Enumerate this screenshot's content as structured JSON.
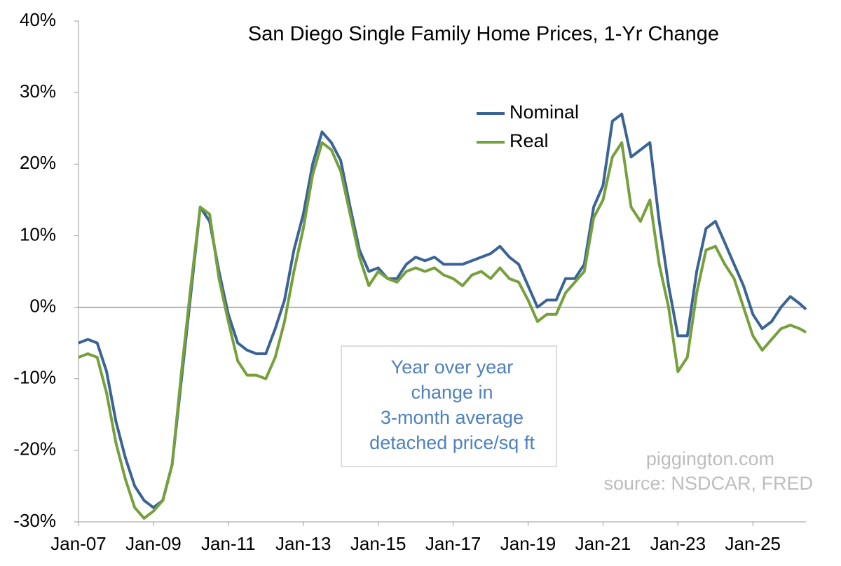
{
  "chart_data": {
    "type": "line",
    "title": "San Diego Single Family Home Prices, 1-Yr Change",
    "x": [
      "Jan-07",
      "Apr-07",
      "Jul-07",
      "Oct-07",
      "Jan-08",
      "Apr-08",
      "Jul-08",
      "Oct-08",
      "Jan-09",
      "Apr-09",
      "Jul-09",
      "Oct-09",
      "Jan-10",
      "Apr-10",
      "Jul-10",
      "Oct-10",
      "Jan-11",
      "Apr-11",
      "Jul-11",
      "Oct-11",
      "Jan-12",
      "Apr-12",
      "Jul-12",
      "Oct-12",
      "Jan-13",
      "Apr-13",
      "Jul-13",
      "Oct-13",
      "Jan-14",
      "Apr-14",
      "Jul-14",
      "Oct-14",
      "Jan-15",
      "Apr-15",
      "Jul-15",
      "Oct-15",
      "Jan-16",
      "Apr-16",
      "Jul-16",
      "Oct-16",
      "Jan-17",
      "Apr-17",
      "Jul-17",
      "Oct-17",
      "Jan-18",
      "Apr-18",
      "Jul-18",
      "Oct-18",
      "Jan-19",
      "Apr-19",
      "Jul-19",
      "Oct-19",
      "Jan-20",
      "Apr-20",
      "Jul-20",
      "Oct-20",
      "Jan-21",
      "Apr-21",
      "Jul-21",
      "Oct-21",
      "Jan-22",
      "Apr-22",
      "Jul-22",
      "Oct-22",
      "Jan-23",
      "Apr-23",
      "Jul-23",
      "Oct-23",
      "Jan-24",
      "Apr-24",
      "Jul-24",
      "Oct-24",
      "Jan-25",
      "Apr-25",
      "Jul-25",
      "Oct-25",
      "Jan-26",
      "Apr-26",
      "Jun-26"
    ],
    "series": [
      {
        "name": "Nominal",
        "color": "#3b6496",
        "values": [
          -5,
          -4.5,
          -5,
          -9,
          -16,
          -21,
          -25,
          -27,
          -28,
          -27,
          -22,
          -10,
          2,
          14,
          12,
          5,
          -1,
          -5,
          -6,
          -6.5,
          -6.5,
          -3,
          1,
          8,
          13,
          20,
          24.5,
          23,
          20.5,
          14,
          8,
          5,
          5.5,
          4,
          4,
          6,
          7,
          6.5,
          7,
          6,
          6,
          6,
          6.5,
          7,
          7.5,
          8.5,
          7,
          6,
          3,
          0,
          1,
          1,
          4,
          4,
          6,
          14,
          17,
          26,
          27,
          21,
          22,
          23,
          12,
          3,
          -4,
          -4,
          5,
          11,
          12,
          9,
          6,
          3,
          -1,
          -3,
          -2,
          0,
          1.5,
          0.5,
          -0.3
        ]
      },
      {
        "name": "Real",
        "color": "#76a03c",
        "values": [
          -7,
          -6.5,
          -7,
          -12,
          -19,
          -24,
          -28,
          -29.5,
          -28.5,
          -27,
          -22,
          -9,
          3,
          14,
          13,
          4,
          -2,
          -7.5,
          -9.5,
          -9.5,
          -10,
          -7,
          -2,
          5,
          11,
          18.5,
          23,
          22,
          19,
          13,
          7,
          3,
          5,
          4,
          3.5,
          5,
          5.5,
          5,
          5.5,
          4.5,
          4,
          3,
          4.5,
          5,
          4,
          5.5,
          4,
          3.5,
          1,
          -2,
          -1,
          -1,
          2,
          3.5,
          5,
          12.5,
          15,
          21,
          23,
          14,
          12,
          15,
          6,
          0,
          -9,
          -7,
          2,
          8,
          8.5,
          6,
          4,
          0,
          -4,
          -6,
          -4.5,
          -3,
          -2.5,
          -3,
          -3.5
        ]
      }
    ],
    "xlim": [
      "Jan-07",
      "Jun-26"
    ],
    "xticks": [
      "Jan-07",
      "Jan-09",
      "Jan-11",
      "Jan-13",
      "Jan-15",
      "Jan-17",
      "Jan-19",
      "Jan-21",
      "Jan-23",
      "Jan-25"
    ],
    "ylim": [
      -30,
      40
    ],
    "yticks": [
      {
        "value": -30,
        "label": "-30%"
      },
      {
        "value": -20,
        "label": "-20%"
      },
      {
        "value": -10,
        "label": "-10%"
      },
      {
        "value": 0,
        "label": "0%"
      },
      {
        "value": 10,
        "label": "10%"
      },
      {
        "value": 20,
        "label": "20%"
      },
      {
        "value": 30,
        "label": "30%"
      },
      {
        "value": 40,
        "label": "40%"
      }
    ],
    "legend": "upper right",
    "annotation": [
      "Year over year",
      "change in",
      "3-month average",
      "detached price/sq ft"
    ],
    "watermark": [
      "piggington.com",
      "source: NSDCAR, FRED"
    ]
  }
}
